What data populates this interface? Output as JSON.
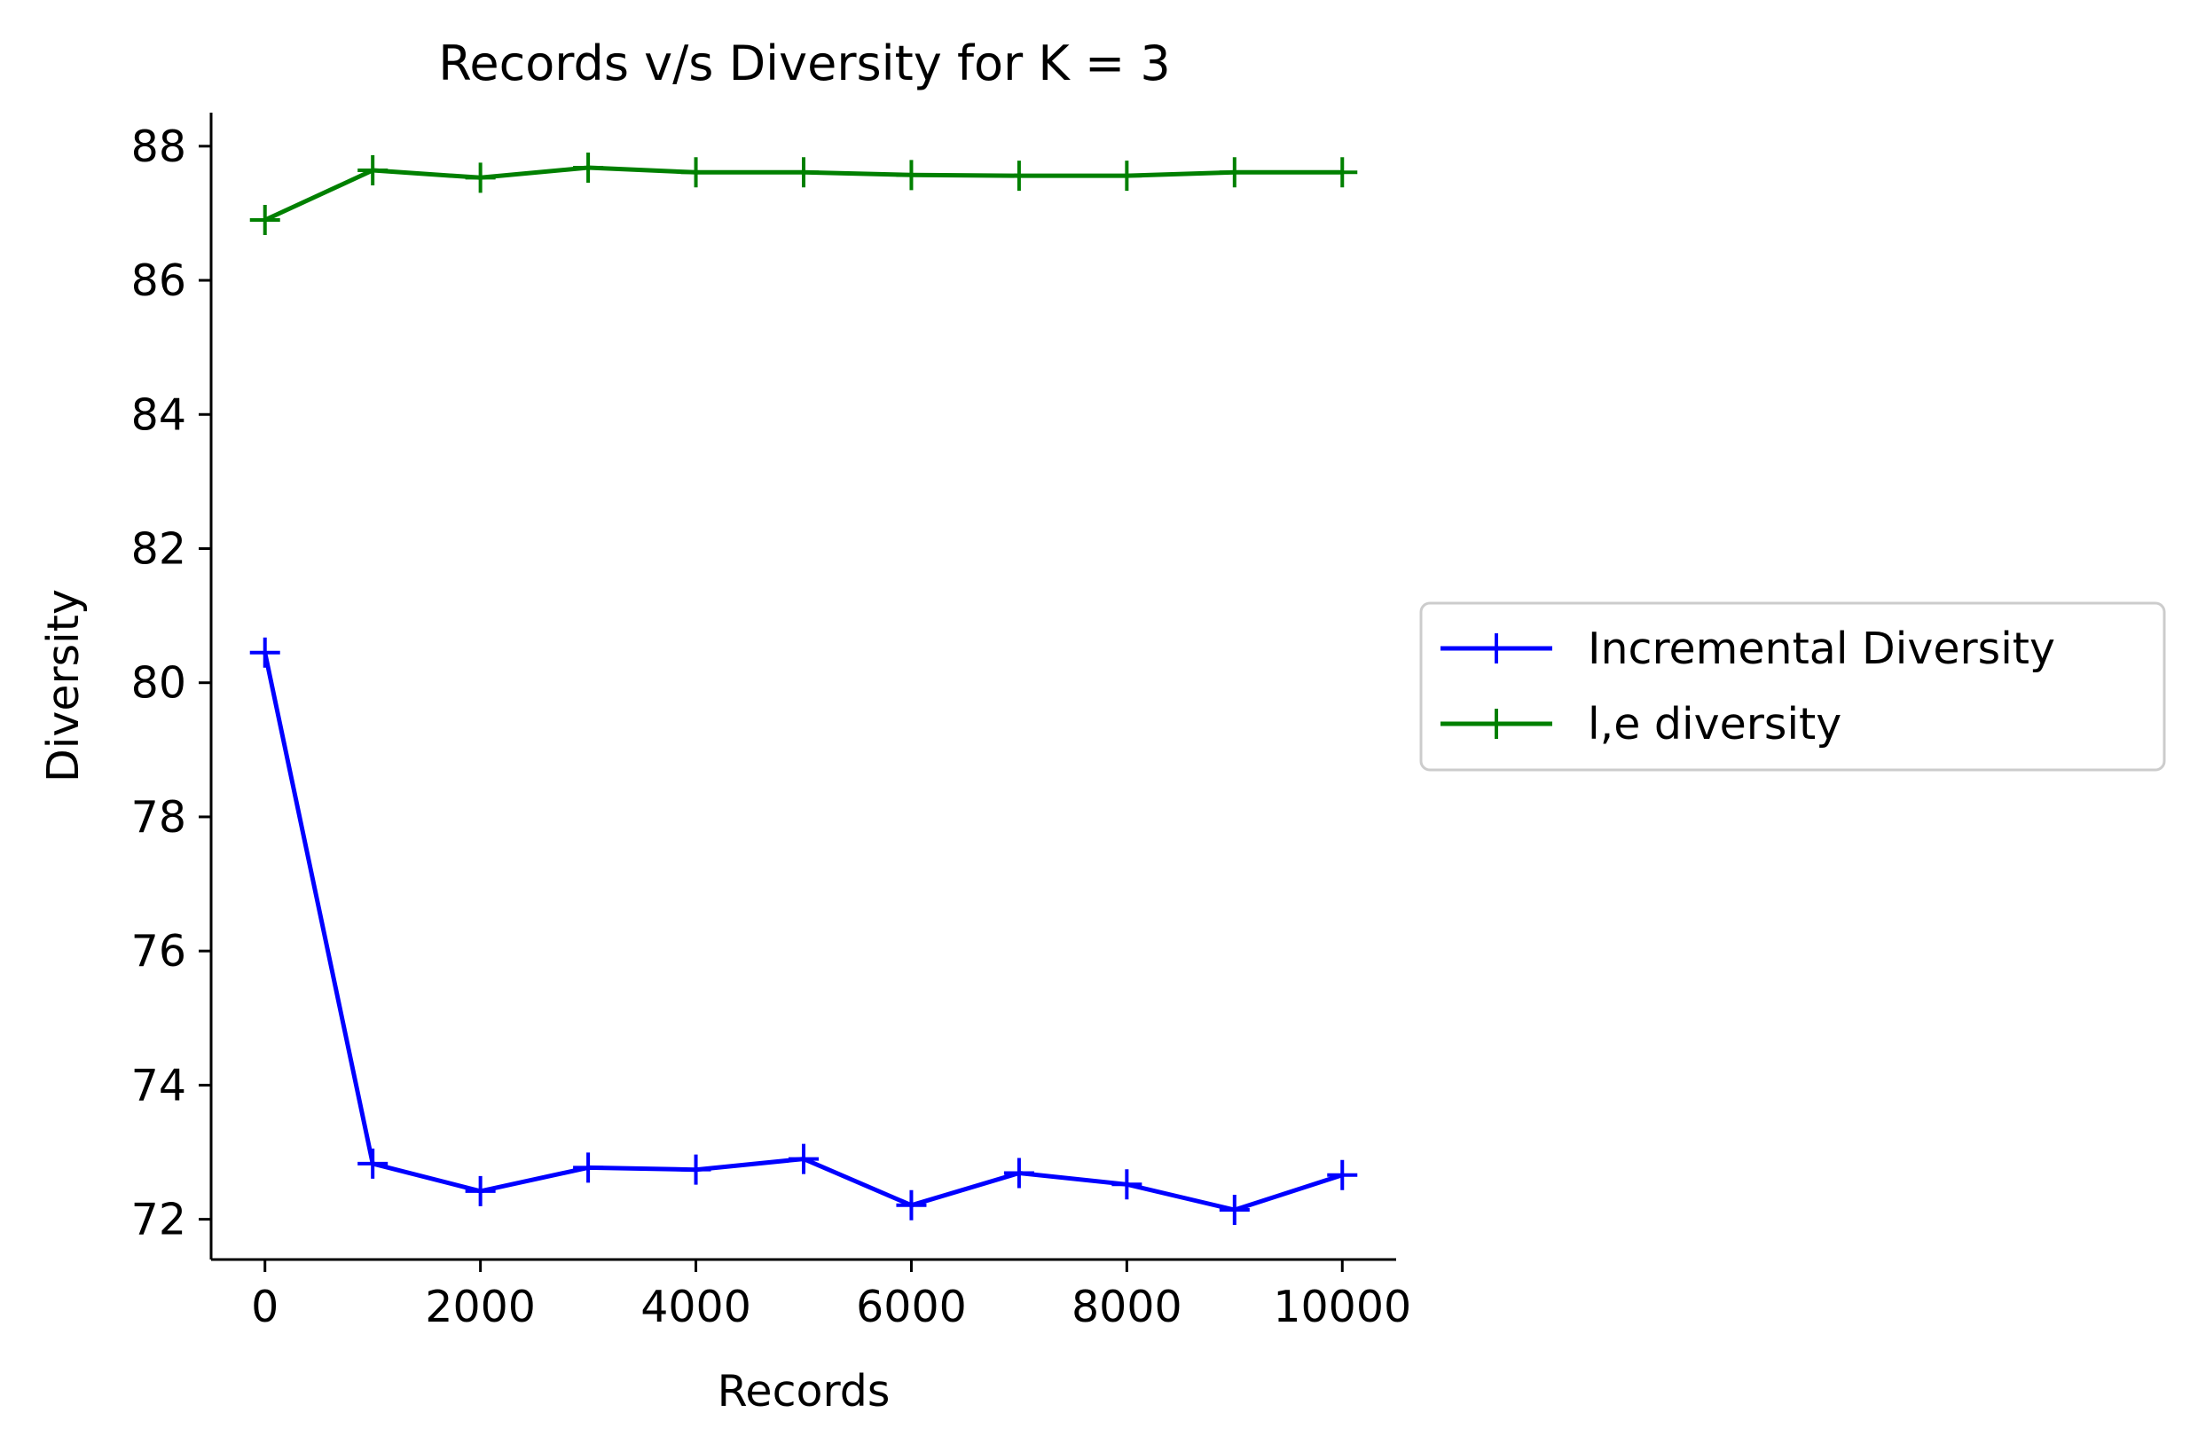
{
  "chart_data": {
    "type": "line",
    "title": "Records v/s Diversity for K = 3",
    "xlabel": "Records",
    "ylabel": "Diversity",
    "x": [
      0,
      1000,
      2000,
      3000,
      4000,
      5000,
      6000,
      7000,
      8000,
      9000,
      10000
    ],
    "xlim": [
      -500,
      10500
    ],
    "ylim": [
      71.4,
      88.5
    ],
    "xticks": [
      0,
      2000,
      4000,
      6000,
      8000,
      10000
    ],
    "xtick_labels": [
      "0",
      "2000",
      "4000",
      "6000",
      "8000",
      "10000"
    ],
    "yticks": [
      72,
      74,
      76,
      78,
      80,
      82,
      84,
      86,
      88
    ],
    "ytick_labels": [
      "72",
      "74",
      "76",
      "78",
      "80",
      "82",
      "84",
      "86",
      "88"
    ],
    "grid": false,
    "legend_position": "outside-right",
    "series": [
      {
        "name": "Incremental Diversity",
        "color": "#0000ff",
        "marker": "plus",
        "values": [
          80.45,
          72.83,
          72.42,
          72.77,
          72.74,
          72.9,
          72.21,
          72.69,
          72.52,
          72.14,
          72.66
        ]
      },
      {
        "name": "l,e diversity",
        "color": "#008000",
        "marker": "plus",
        "values": [
          86.9,
          87.64,
          87.53,
          87.68,
          87.61,
          87.61,
          87.57,
          87.56,
          87.56,
          87.61,
          87.61
        ]
      }
    ]
  }
}
